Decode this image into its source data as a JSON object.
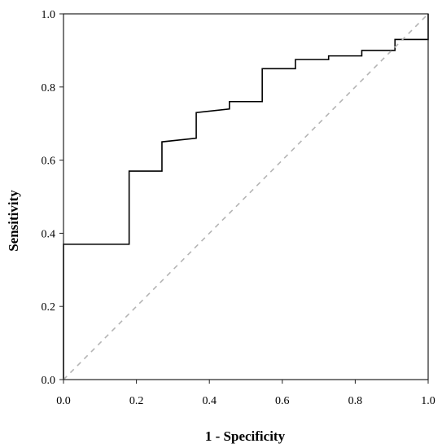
{
  "chart_data": {
    "type": "line",
    "title": "",
    "xlabel": "1 - Specificity",
    "ylabel": "Sensitivity",
    "xlim": [
      0.0,
      1.0
    ],
    "ylim": [
      0.0,
      1.0
    ],
    "x_ticks": [
      "0.0",
      "0.2",
      "0.4",
      "0.6",
      "0.8",
      "1.0"
    ],
    "y_ticks": [
      "0.0",
      "0.2",
      "0.4",
      "0.6",
      "0.8",
      "1.0"
    ],
    "grid": false,
    "legend": "none",
    "series": [
      {
        "style": "solid",
        "color": "#000000",
        "x": [
          0.0,
          0.0,
          0.18,
          0.18,
          0.27,
          0.27,
          0.364,
          0.364,
          0.455,
          0.455,
          0.545,
          0.545,
          0.636,
          0.636,
          0.727,
          0.727,
          0.818,
          0.818,
          0.909,
          0.909,
          1.0,
          1.0
        ],
        "y": [
          0.0,
          0.37,
          0.37,
          0.57,
          0.57,
          0.65,
          0.66,
          0.73,
          0.74,
          0.76,
          0.76,
          0.85,
          0.85,
          0.875,
          0.875,
          0.885,
          0.885,
          0.9,
          0.9,
          0.93,
          0.93,
          1.0
        ]
      },
      {
        "style": "dashed",
        "color": "#b4b4b4",
        "x": [
          0.0,
          1.0
        ],
        "y": [
          0.0,
          1.0
        ]
      }
    ]
  }
}
